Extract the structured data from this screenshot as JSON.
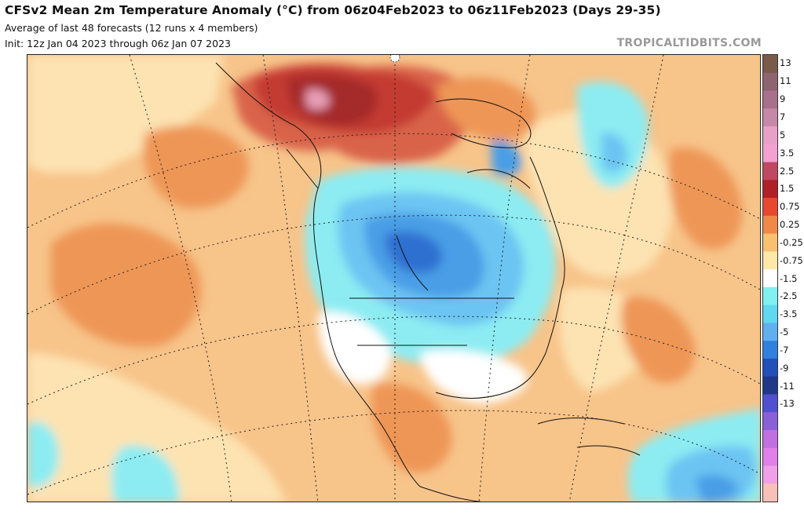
{
  "header": {
    "title": "CFSv2 Mean 2m Temperature Anomaly (°C) from 06z04Feb2023 to 06z11Feb2023 (Days 29-35)",
    "subtitle": "Average of last 48 forecasts (12 runs x 4 members)",
    "init": "Init: 12z Jan 04 2023 through 06z Jan 07 2023"
  },
  "brand": "TROPICALTIDBITS.COM",
  "colorbar": {
    "labels": [
      "13",
      "11",
      "9",
      "7",
      "5",
      "3.5",
      "2.5",
      "1.5",
      "0.75",
      "0.25",
      "-0.25",
      "-0.75",
      "-1.5",
      "-2.5",
      "-3.5",
      "-5",
      "-7",
      "-9",
      "-11",
      "-13"
    ],
    "colors": [
      "#7a5a4a",
      "#8e6470",
      "#a8708a",
      "#c688a8",
      "#e8a0c8",
      "#f4a0d0",
      "#c04860",
      "#b02028",
      "#e84830",
      "#f08848",
      "#f8c070",
      "#fde8a8",
      "#ffffff",
      "#80f0f0",
      "#60d8f0",
      "#60b0f0",
      "#3080e0",
      "#2050b8",
      "#203888",
      "#5050d0",
      "#8a60d8",
      "#c070e0",
      "#e080e8",
      "#f0a0e8",
      "#f8c0b8"
    ]
  },
  "map": {
    "colors": {
      "ocean_orange": "#f7c48a",
      "deep_orange": "#ee9656",
      "light_yellow": "#fde3b2",
      "white": "#ffffff",
      "red": "#c43a32",
      "dark_red": "#a52a2a",
      "pink": "#e8a0b8",
      "cyan": "#8cecf2",
      "light_blue": "#6cc4f2",
      "mid_blue": "#4a9ee6",
      "dark_blue": "#2f6fd0"
    }
  }
}
